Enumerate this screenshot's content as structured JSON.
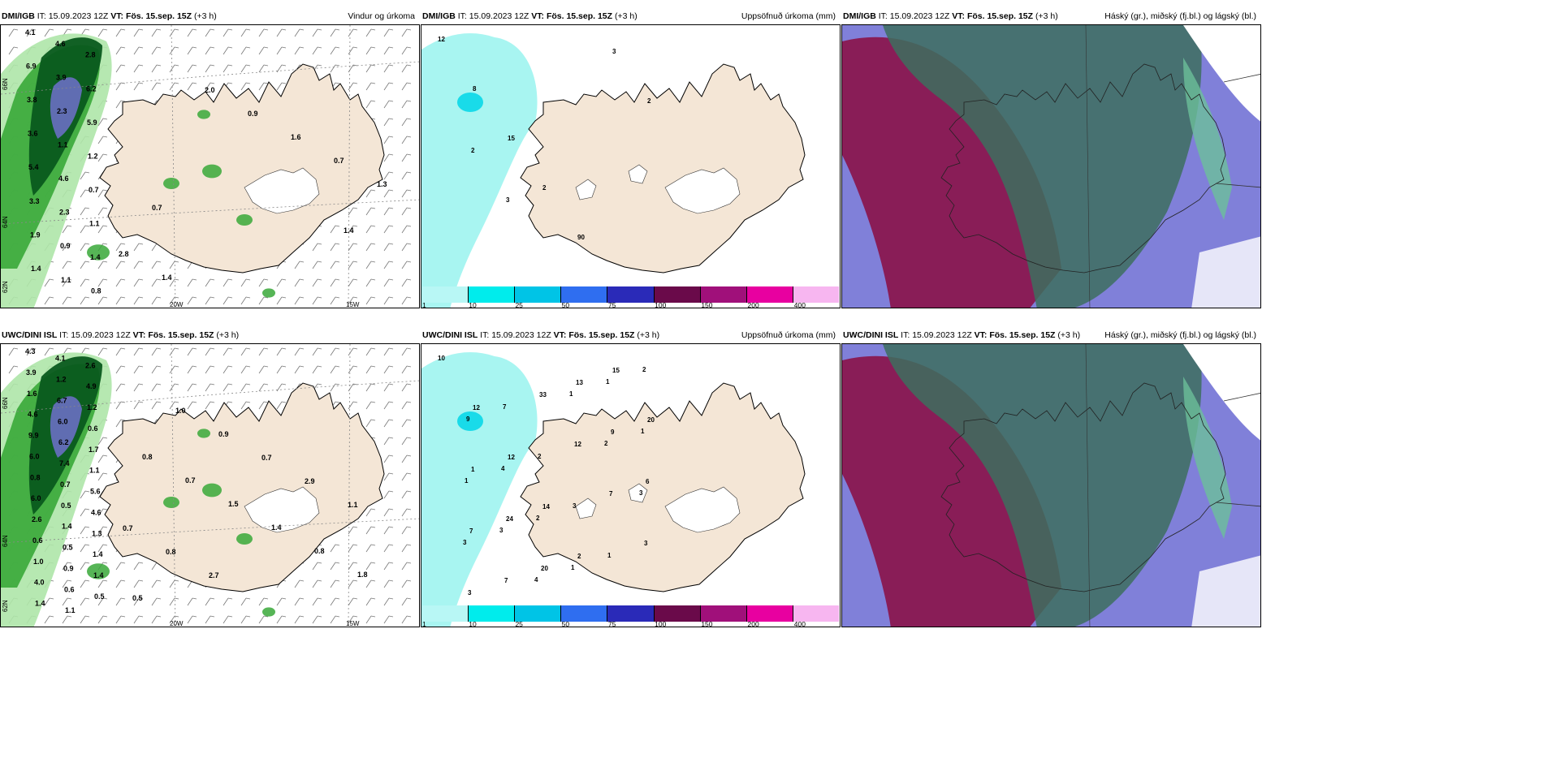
{
  "panels": [
    {
      "model": "DMI/IGB",
      "it_label": "IT:",
      "it": "15.09.2023 12Z",
      "vt_label": "VT:",
      "vt": "Fös. 15.sep. 15Z",
      "lead": "(+3 h)",
      "title": "Vindur og úrkoma",
      "kind": "wind"
    },
    {
      "model": "DMI/IGB",
      "it_label": "IT:",
      "it": "15.09.2023 12Z",
      "vt_label": "VT:",
      "vt": "Fös. 15.sep. 15Z",
      "lead": "(+3 h)",
      "title": "Uppsöfnuð úrkoma (mm)",
      "kind": "accum"
    },
    {
      "model": "DMI/IGB",
      "it_label": "IT:",
      "it": "15.09.2023 12Z",
      "vt_label": "VT:",
      "vt": "Fös. 15.sep. 15Z",
      "lead": "(+3 h)",
      "title": "Háský (gr.), miðský (fj.bl.) og lágský (bl.)",
      "kind": "cloud"
    },
    {
      "model": "UWC/DINI ISL",
      "it_label": "IT:",
      "it": "15.09.2023 12Z",
      "vt_label": "VT:",
      "vt": "Fös. 15.sep. 15Z",
      "lead": "(+3 h)",
      "title": "",
      "kind": "wind"
    },
    {
      "model": "UWC/DINI ISL",
      "it_label": "IT:",
      "it": "15.09.2023 12Z",
      "vt_label": "VT:",
      "vt": "Fös. 15.sep. 15Z",
      "lead": "(+3 h)",
      "title": "Uppsöfnuð úrkoma (mm)",
      "kind": "accum"
    },
    {
      "model": "UWC/DINI ISL",
      "it_label": "IT:",
      "it": "15.09.2023 12Z",
      "vt_label": "VT:",
      "vt": "Fös. 15.sep. 15Z",
      "lead": "(+3 h)",
      "title": "Háský (gr.), miðský (fj.bl.) og lágský (bl.)",
      "kind": "cloud"
    }
  ],
  "axis_labels": {
    "lon_20w": "20W",
    "lon_15w": "15W",
    "lat_66n": "66N",
    "lat_64n": "64N",
    "lat_62n": "62N"
  },
  "legend": {
    "values": [
      "1",
      "10",
      "25",
      "50",
      "75",
      "100",
      "150",
      "200",
      "400"
    ],
    "colors": [
      "#b8f7f5",
      "#00ecec",
      "#00c4e6",
      "#2f6ef0",
      "#2a2ab8",
      "#6a0a4a",
      "#a0107a",
      "#e800a0",
      "#f7b6f0"
    ]
  },
  "colors": {
    "land": "#f4e6d6",
    "ice": "#ffffff",
    "precip_light": "#aee6a8",
    "precip_mid": "#38a838",
    "precip_dark": "#0a5a1e",
    "precip_heavy": "#7070cc",
    "accum": "#9ef4f0",
    "cloud_high": "#3d6e5e",
    "cloud_mid": "#8a1248",
    "cloud_low": "#5555cc"
  },
  "labels_wind_top": [
    "4.1",
    "4.6",
    "2.8",
    "6.9",
    "3.9",
    "6.2",
    "3.8",
    "2.3",
    "5.9",
    "3.6",
    "1.1",
    "1.2",
    "5.4",
    "4.6",
    "0.7",
    "3.3",
    "2.3",
    "1.1",
    "1.9",
    "0.9",
    "1.4",
    "1.4",
    "1.1",
    "0.8",
    "1.4",
    "2.8",
    "1.4",
    "2.0",
    "0.9",
    "1.6",
    "0.7",
    "1.3",
    "0.7"
  ],
  "labels_wind_bot": [
    "4.3",
    "4.1",
    "2.6",
    "3.9",
    "1.2",
    "4.9",
    "1.6",
    "6.7",
    "1.2",
    "4.6",
    "6.0",
    "0.6",
    "9.9",
    "6.2",
    "1.7",
    "6.0",
    "7.4",
    "1.1",
    "0.8",
    "0.7",
    "5.6",
    "6.0",
    "0.5",
    "4.6",
    "2.6",
    "1.4",
    "1.3",
    "0.6",
    "0.5",
    "1.4",
    "1.0",
    "0.9",
    "1.4",
    "4.0",
    "0.6",
    "0.5",
    "1.4",
    "1.1",
    "0.8",
    "0.7",
    "1.5",
    "1.4",
    "0.8",
    "1.8",
    "0.5",
    "1.0",
    "0.9",
    "0.7",
    "2.9",
    "1.1",
    "0.7",
    "0.8",
    "2.7"
  ],
  "labels_accum_top": [
    "12",
    "8",
    "15",
    "2",
    "90",
    "3",
    "2",
    "2",
    "3"
  ],
  "labels_accum_bot": [
    "10",
    "12",
    "12",
    "14",
    "2",
    "15",
    "20",
    "1",
    "24",
    "20",
    "13",
    "9",
    "6",
    "7",
    "7",
    "33",
    "12",
    "7",
    "3",
    "3",
    "7",
    "2",
    "3",
    "1",
    "2",
    "9",
    "4",
    "2",
    "1",
    "1",
    "1",
    "1",
    "3",
    "4",
    "1",
    "2",
    "3",
    "3"
  ]
}
